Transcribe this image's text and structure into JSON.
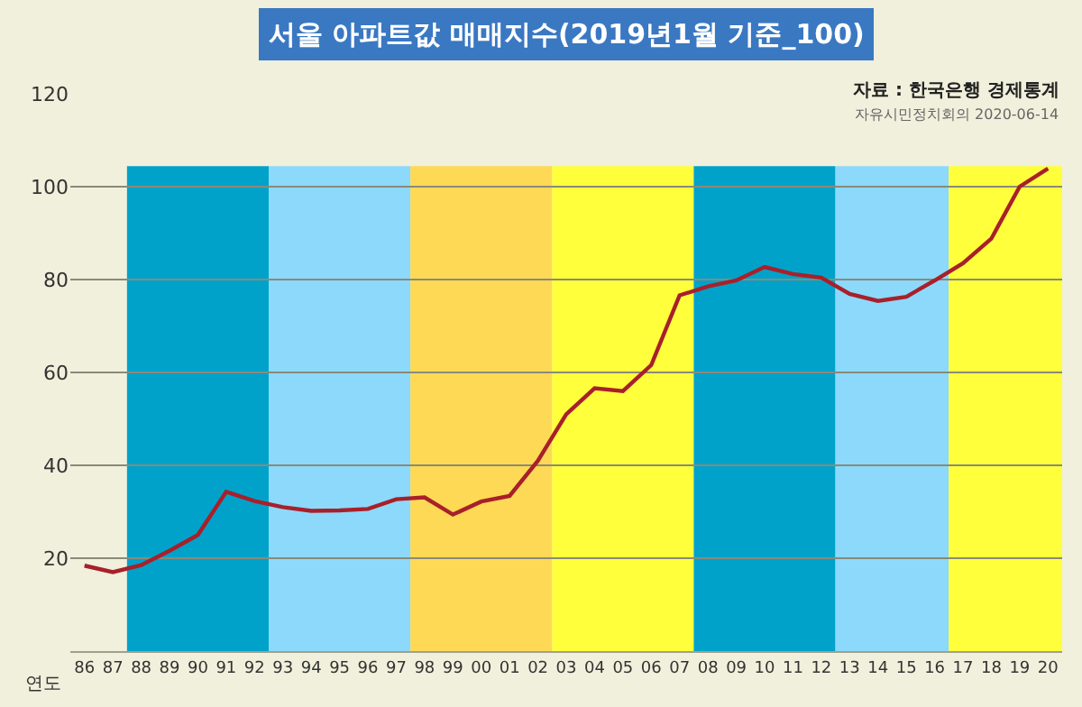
{
  "chart_data": {
    "type": "line",
    "title": "서울 아파트값 매매지수(2019년1월 기준_100)",
    "xlabel": "연도",
    "annotations": [
      "자료 : 한국은행 경제통계",
      "자유시민정치회의 2020-06-14"
    ],
    "categories": [
      "86",
      "87",
      "88",
      "89",
      "90",
      "91",
      "92",
      "93",
      "94",
      "95",
      "96",
      "97",
      "98",
      "99",
      "00",
      "01",
      "02",
      "03",
      "04",
      "05",
      "06",
      "07",
      "08",
      "09",
      "10",
      "11",
      "12",
      "13",
      "14",
      "15",
      "16",
      "17",
      "18",
      "19",
      "20"
    ],
    "series": [
      {
        "color": "#a8202a",
        "values": [
          18.4,
          17,
          18.5,
          21.6,
          25,
          34.3,
          32.3,
          31,
          30.2,
          30.3,
          30.6,
          32.7,
          33.1,
          29.4,
          32.2,
          33.4,
          41,
          51,
          56.6,
          56,
          61.6,
          76.6,
          78.5,
          79.8,
          82.7,
          81.2,
          80.4,
          76.9,
          75.4,
          76.3,
          79.8,
          83.5,
          88.8,
          100,
          103.9
        ]
      }
    ],
    "ylim": [
      0,
      120
    ],
    "yticks": [
      20,
      40,
      60,
      80,
      100,
      120
    ],
    "grid": "y",
    "marker": "none",
    "line_style": "solid",
    "bands": [
      {
        "axis": "x",
        "from": "88",
        "to": "92",
        "color": "#00a2ca"
      },
      {
        "axis": "x",
        "from": "93",
        "to": "97",
        "color": "#8cd9fb"
      },
      {
        "axis": "x",
        "from": "98",
        "to": "02",
        "color": "#fdd955"
      },
      {
        "axis": "x",
        "from": "03",
        "to": "07",
        "color": "#ffff3c"
      },
      {
        "axis": "x",
        "from": "08",
        "to": "12",
        "color": "#00a2ca"
      },
      {
        "axis": "x",
        "from": "13",
        "to": "16",
        "color": "#8cd9fb"
      },
      {
        "axis": "x",
        "from": "17",
        "to": "20",
        "color": "#ffff3c"
      }
    ]
  }
}
